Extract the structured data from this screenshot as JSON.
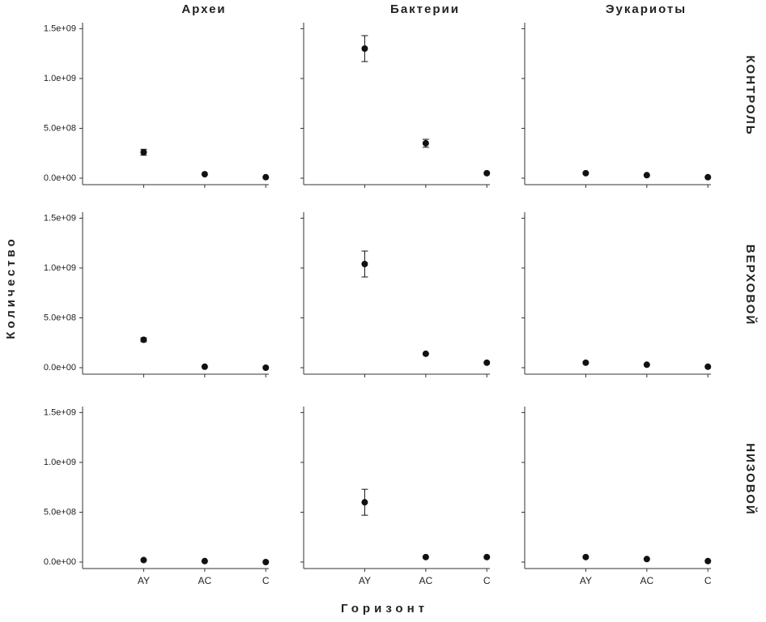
{
  "column_titles": [
    "Археи",
    "Бактерии",
    "Эукариоты"
  ],
  "row_titles": [
    "КОНТРОЛЬ",
    "ВЕРХОВОЙ",
    "НИЗОВОЙ"
  ],
  "x_label": "Горизонт",
  "y_label": "Количество",
  "shared_axes": {
    "categories": [
      "AY",
      "AC",
      "C"
    ],
    "ylim": [
      -65000000,
      1560000000
    ],
    "yticks": [
      {
        "value": 0,
        "label": "0.0e+00"
      },
      {
        "value": 500000000,
        "label": "5.0e+08"
      },
      {
        "value": 1000000000,
        "label": "1.0e+09"
      },
      {
        "value": 1500000000,
        "label": "1.5e+09"
      }
    ]
  },
  "chart_data": [
    {
      "type": "scatter",
      "color": "#111111",
      "values": [
        260000000,
        40000000,
        10000000
      ],
      "errors": [
        30000000,
        null,
        null
      ]
    },
    {
      "type": "scatter",
      "color": "#111111",
      "values": [
        1300000000,
        350000000,
        50000000
      ],
      "errors": [
        130000000,
        40000000,
        null
      ]
    },
    {
      "type": "scatter",
      "color": "#111111",
      "values": [
        50000000,
        30000000,
        10000000
      ],
      "errors": [
        null,
        null,
        null
      ]
    },
    {
      "type": "scatter",
      "color": "#111111",
      "values": [
        280000000,
        10000000,
        0
      ],
      "errors": [
        20000000,
        null,
        null
      ]
    },
    {
      "type": "scatter",
      "color": "#111111",
      "values": [
        1040000000,
        140000000,
        50000000
      ],
      "errors": [
        130000000,
        null,
        null
      ]
    },
    {
      "type": "scatter",
      "color": "#111111",
      "values": [
        50000000,
        30000000,
        10000000
      ],
      "errors": [
        null,
        null,
        null
      ]
    },
    {
      "type": "scatter",
      "color": "#111111",
      "values": [
        20000000,
        10000000,
        0
      ],
      "errors": [
        null,
        null,
        null
      ]
    },
    {
      "type": "scatter",
      "color": "#111111",
      "values": [
        600000000,
        50000000,
        50000000
      ],
      "errors": [
        130000000,
        null,
        null
      ]
    },
    {
      "type": "scatter",
      "color": "#111111",
      "values": [
        50000000,
        30000000,
        10000000
      ],
      "errors": [
        null,
        null,
        null
      ]
    }
  ]
}
